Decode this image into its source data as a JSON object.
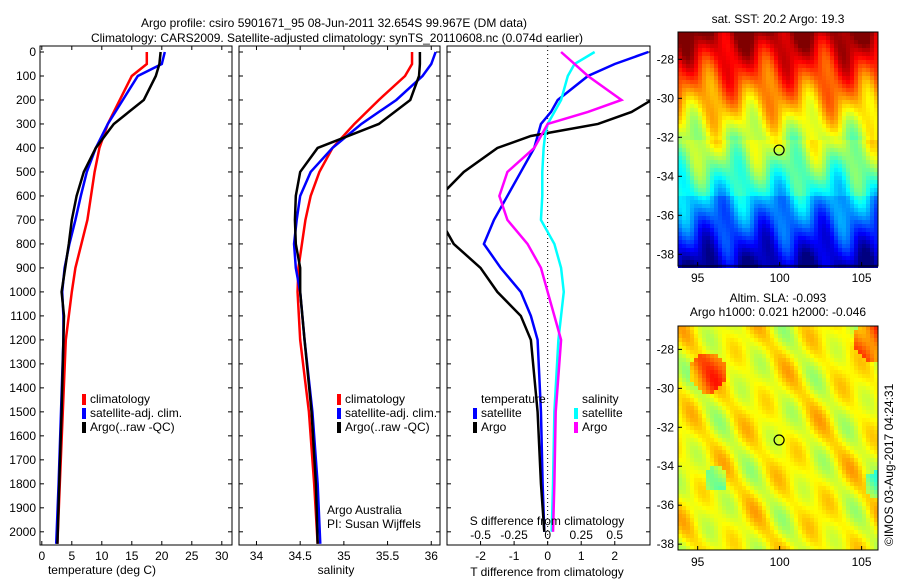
{
  "title_line1": "Argo profile: csiro 5901671_95 08-Jun-2011 32.654S 99.967E (DM data)",
  "title_line2": "Climatology: CARS2009. Satellite-adjusted climatology: synTS_20110608.nc (0.074d earlier)",
  "credit_line1": "Argo Australia",
  "credit_line2": "PI: Susan Wijffels",
  "timestamp": "©IMOS 03-Aug-2017 04:24:31",
  "colors": {
    "climatology": "#ff0000",
    "satellite": "#0000ff",
    "argo": "#000000",
    "sal_satellite": "#00ffff",
    "sal_argo": "#ff00ff"
  },
  "chart_data": [
    {
      "type": "line",
      "name": "temperature",
      "xlabel": "temperature (deg C)",
      "xticks": [
        0,
        5,
        10,
        15,
        20,
        25,
        30
      ],
      "xlim": [
        -0.3,
        31.7
      ],
      "ylim": [
        -25,
        2055
      ],
      "yticks": [
        0,
        100,
        200,
        300,
        400,
        500,
        600,
        700,
        800,
        900,
        1000,
        1100,
        1200,
        1300,
        1400,
        1500,
        1600,
        1700,
        1800,
        1900,
        2000
      ],
      "legend": [
        "climatology",
        "satellite-adj. clim.",
        "Argo(..raw -QC)"
      ],
      "depth": [
        0,
        50,
        100,
        200,
        300,
        400,
        500,
        600,
        700,
        800,
        900,
        1000,
        1100,
        1200,
        1500,
        1800,
        2050
      ],
      "series": [
        {
          "name": "climatology",
          "color": "#ff0000",
          "values": [
            17.5,
            17.5,
            15,
            13,
            11,
            9.6,
            8.8,
            8.2,
            7.6,
            6.6,
            5.6,
            5,
            4.5,
            4,
            3.5,
            3,
            2.6
          ]
        },
        {
          "name": "satellite-adj. clim.",
          "color": "#0000ff",
          "values": [
            20.5,
            20,
            16,
            13.5,
            11,
            9,
            7.5,
            6.5,
            5.6,
            4.6,
            3.8,
            3.4,
            3.6,
            3.6,
            3.2,
            2.8,
            2.4
          ]
        },
        {
          "name": "Argo(..raw -QC)",
          "color": "#000000",
          "values": [
            19.8,
            19.6,
            19,
            17,
            12,
            9,
            7,
            5.8,
            5,
            4.5,
            3.9,
            3.3,
            3.7,
            3.6,
            3.3,
            2.9,
            2.6
          ]
        }
      ]
    },
    {
      "type": "line",
      "name": "salinity",
      "xlabel": "salinity",
      "xticks": [
        34,
        34.5,
        35,
        35.5,
        36
      ],
      "xlim": [
        33.8,
        36.1
      ],
      "ylim": [
        -25,
        2055
      ],
      "legend": [
        "climatology",
        "satellite-adj. clim.",
        "Argo(..raw -QC)"
      ],
      "depth": [
        0,
        50,
        100,
        200,
        300,
        400,
        500,
        600,
        700,
        800,
        900,
        1000,
        1200,
        1500,
        1800,
        2050
      ],
      "series": [
        {
          "name": "climatology",
          "color": "#ff0000",
          "values": [
            35.78,
            35.78,
            35.7,
            35.4,
            35.12,
            34.87,
            34.72,
            34.62,
            34.56,
            34.52,
            34.48,
            34.47,
            34.5,
            34.6,
            34.66,
            34.7
          ]
        },
        {
          "name": "satellite-adj. clim.",
          "color": "#0000ff",
          "values": [
            36.05,
            36.0,
            35.9,
            35.6,
            35.2,
            34.87,
            34.62,
            34.5,
            34.46,
            34.43,
            34.45,
            34.5,
            34.55,
            34.64,
            34.7,
            34.73
          ]
        },
        {
          "name": "Argo(..raw -QC)",
          "color": "#000000",
          "values": [
            35.87,
            35.87,
            35.86,
            35.76,
            35.4,
            34.7,
            34.5,
            34.45,
            34.44,
            34.45,
            34.5,
            34.5,
            34.55,
            34.63,
            34.68,
            34.7
          ]
        }
      ]
    },
    {
      "type": "line",
      "name": "difference",
      "xlabel": "T difference from climatology",
      "x2label": "S difference from climatology",
      "xticks": [
        -2,
        -1,
        0,
        1,
        2
      ],
      "x2ticks": [
        "-0.5",
        "-0.25",
        "0",
        "0.25",
        "0.5"
      ],
      "xlim": [
        -3,
        3.05
      ],
      "ylim": [
        -25,
        2055
      ],
      "legend_titles": [
        "temperature",
        "salinity"
      ],
      "legend": [
        "satellite",
        "Argo",
        "satellite",
        "Argo"
      ],
      "depth": [
        0,
        50,
        100,
        200,
        250,
        300,
        350,
        400,
        500,
        600,
        700,
        800,
        900,
        1000,
        1100,
        1200,
        1500,
        1800,
        2000
      ],
      "series": [
        {
          "name": "T satellite",
          "color": "#0000ff",
          "units": "T",
          "values": [
            3,
            2,
            1.2,
            0.3,
            0.1,
            -0.2,
            -0.3,
            -0.4,
            -0.8,
            -1.2,
            -1.6,
            -1.9,
            -1.4,
            -0.8,
            -0.5,
            -0.3,
            -0.2,
            -0.15,
            -0.1
          ]
        },
        {
          "name": "T Argo",
          "color": "#000000",
          "units": "T",
          "values": [
            3.1,
            3.1,
            3.1,
            3.1,
            2.5,
            1.5,
            -0.5,
            -1.5,
            -2.5,
            -3.2,
            -3.2,
            -2.8,
            -2,
            -1.5,
            -0.8,
            -0.5,
            -0.3,
            -0.2,
            -0.1
          ]
        },
        {
          "name": "S satellite",
          "color": "#00ffff",
          "units": "S",
          "values": [
            0.35,
            0.2,
            0.15,
            0.1,
            0.05,
            0,
            -0.02,
            -0.03,
            -0.04,
            -0.04,
            -0.05,
            0.05,
            0.1,
            0.12,
            0.1,
            0.08,
            0.05,
            0.04,
            0.03
          ]
        },
        {
          "name": "S Argo",
          "color": "#ff00ff",
          "units": "S",
          "values": [
            0.1,
            0.2,
            0.3,
            0.55,
            0.3,
            0.0,
            -0.05,
            -0.1,
            -0.3,
            -0.36,
            -0.3,
            -0.15,
            -0.05,
            0,
            0.05,
            0.1,
            0.06,
            0.05,
            0.04
          ]
        }
      ]
    },
    {
      "type": "heatmap",
      "name": "sst-map",
      "title": "sat. SST: 20.2  Argo: 19.3",
      "xticks": [
        95,
        100,
        105
      ],
      "yticks": [
        -28,
        -30,
        -32,
        -34,
        -36,
        -38
      ],
      "xlim": [
        93.8,
        106
      ],
      "ylim": [
        -38.6,
        -26.6
      ],
      "marker": {
        "lon": 99.967,
        "lat": -32.654
      }
    },
    {
      "type": "heatmap",
      "name": "sla-map",
      "title_line1": "Altim. SLA: -0.093",
      "title_line2": "Argo h1000: 0.021 h2000: -0.046",
      "xticks": [
        95,
        100,
        105
      ],
      "yticks": [
        -28,
        -30,
        -32,
        -34,
        -36,
        -38
      ],
      "xlim": [
        93.8,
        106
      ],
      "ylim": [
        -38.3,
        -26.8
      ],
      "marker": {
        "lon": 99.967,
        "lat": -32.654
      }
    }
  ]
}
